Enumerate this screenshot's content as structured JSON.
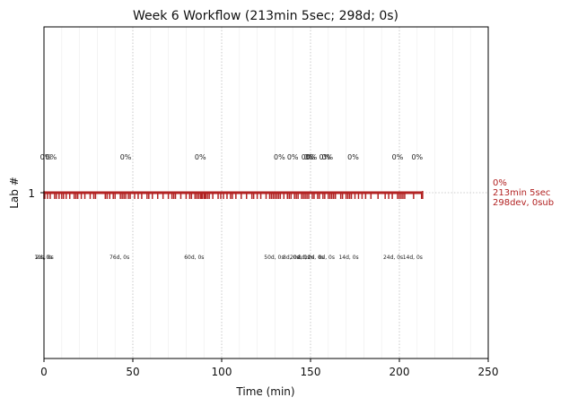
{
  "chart_data": {
    "type": "line",
    "title": "Week 6 Workflow (213min 5sec; 298d; 0s)",
    "xlabel": "Time (min)",
    "ylabel": "Lab #",
    "xlim": [
      0,
      250
    ],
    "xticks": [
      0,
      50,
      100,
      150,
      200,
      250
    ],
    "xtick_labels": [
      "0",
      "50",
      "100",
      "150",
      "200",
      "250"
    ],
    "yticks": [
      1
    ],
    "ytick_labels": [
      "1"
    ],
    "grid": "vertical dotted at major ticks, faint minor vertical lines",
    "line_color": "#b22222",
    "series": [
      {
        "lab": 1,
        "start_min": 0,
        "end_min": 213.08,
        "event_times": [
          0.5,
          2,
          3.5,
          6,
          7,
          8.5,
          10,
          11,
          12.5,
          14.5,
          17,
          18,
          19,
          21,
          23,
          26,
          28,
          29,
          34.5,
          35.5,
          37,
          39,
          40,
          43,
          44,
          45,
          46,
          47.5,
          48.5,
          51,
          53,
          55,
          58,
          59,
          61,
          64,
          67,
          70,
          72,
          73,
          74,
          77,
          80,
          82,
          83,
          85,
          86,
          87,
          88,
          88.5,
          89,
          90,
          90.5,
          91,
          92,
          93,
          95,
          98,
          99.5,
          101,
          103,
          105,
          106,
          108,
          111,
          114,
          117,
          118,
          120,
          122,
          125,
          127,
          128,
          129,
          130,
          131,
          132,
          133,
          135,
          137,
          138,
          139,
          141,
          142,
          143,
          145,
          146,
          147,
          148,
          149,
          151,
          152,
          154,
          155,
          157,
          158,
          160,
          161,
          162,
          163,
          164,
          167,
          168,
          170,
          171,
          172,
          173,
          175,
          177,
          179,
          181,
          184,
          188,
          192,
          194,
          196,
          199,
          200,
          201,
          202,
          203,
          208,
          212.5
        ]
      }
    ],
    "percent_labels": [
      {
        "x": 1,
        "text": "0%"
      },
      {
        "x": 4,
        "text": "0%"
      },
      {
        "x": 46,
        "text": "0%"
      },
      {
        "x": 88,
        "text": "0%"
      },
      {
        "x": 132.5,
        "text": "0%"
      },
      {
        "x": 140,
        "text": "0%"
      },
      {
        "x": 148,
        "text": "0%"
      },
      {
        "x": 149.5,
        "text": "0%"
      },
      {
        "x": 150.5,
        "text": "0%"
      },
      {
        "x": 158,
        "text": "0%"
      },
      {
        "x": 159.5,
        "text": "0%"
      },
      {
        "x": 174,
        "text": "0%"
      },
      {
        "x": 199,
        "text": "0%"
      },
      {
        "x": 210,
        "text": "0%"
      }
    ],
    "segment_labels": [
      {
        "x": 0,
        "text": "2d, 0s"
      },
      {
        "x": 0,
        "text": "10s, 0s"
      },
      {
        "x": 42.5,
        "text": "76d, 0s"
      },
      {
        "x": 84.5,
        "text": "60d, 0s"
      },
      {
        "x": 129.5,
        "text": "50d, 0s"
      },
      {
        "x": 139,
        "text": "8d, 0s"
      },
      {
        "x": 144,
        "text": "20d, 0s"
      },
      {
        "x": 147.5,
        "text": "8d, 0s"
      },
      {
        "x": 152,
        "text": "12d, 0s"
      },
      {
        "x": 159,
        "text": "8d, 0s"
      },
      {
        "x": 171.5,
        "text": "14d, 0s"
      },
      {
        "x": 196.5,
        "text": "24d, 0s"
      },
      {
        "x": 207.5,
        "text": "14d, 0s"
      }
    ],
    "right_annotation": [
      "0%",
      "213min 5sec",
      "298dev, 0sub"
    ]
  }
}
